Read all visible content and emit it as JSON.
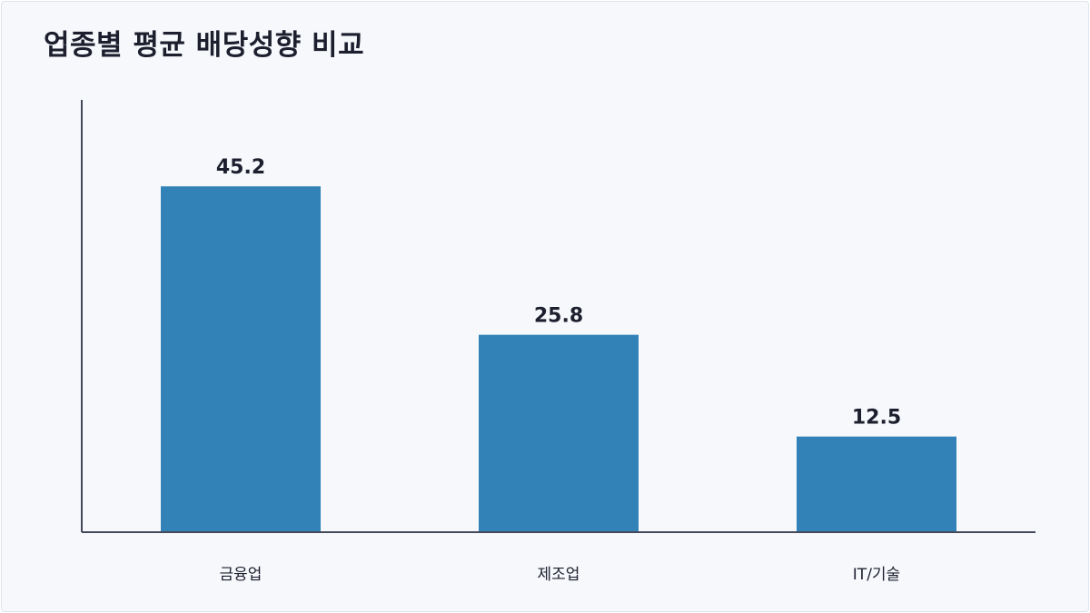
{
  "chart_data": {
    "type": "bar",
    "title": "업종별 평균 배당성향 비교",
    "xlabel": "",
    "ylabel": "",
    "categories": [
      "금융업",
      "제조업",
      "IT/기술"
    ],
    "series": [
      {
        "values": [
          45.2,
          25.8,
          12.5
        ]
      }
    ],
    "data_labels": [
      "45.2",
      "25.8",
      "12.5"
    ],
    "ylim": [
      0,
      56.5
    ],
    "grid": false,
    "legend": "none",
    "colors": {
      "bar": "#3282b8",
      "axis": "#444a5a",
      "text": "#1d1f2e",
      "background": "#f6f8fc"
    }
  }
}
